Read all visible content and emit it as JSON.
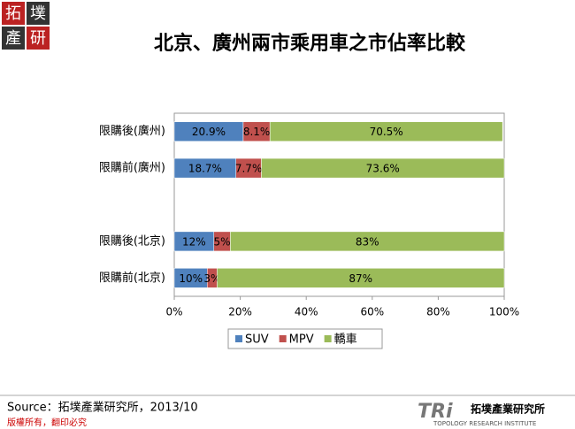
{
  "logo": {
    "chars": [
      "拓",
      "墣",
      "產",
      "研"
    ]
  },
  "chart_data": {
    "type": "stacked-barh",
    "title": "北京、廣州兩市乘用車之市佔率比較",
    "categories": [
      "限購後(廣州)",
      "限購前(廣州)",
      null,
      "限購後(北京)",
      "限購前(北京)"
    ],
    "series": [
      {
        "name": "SUV",
        "color": "#4f81bd",
        "values": [
          20.9,
          18.7,
          null,
          12,
          10
        ],
        "value_labels": [
          "20.9%",
          "18.7%",
          null,
          "12%",
          "10%"
        ]
      },
      {
        "name": "MPV",
        "color": "#c0504d",
        "values": [
          8.1,
          7.7,
          null,
          5,
          3
        ],
        "value_labels": [
          "8.1%",
          "7.7%",
          null,
          "5%",
          "3%"
        ]
      },
      {
        "name": "轎車",
        "color": "#9bbb59",
        "values": [
          70.5,
          73.6,
          null,
          83,
          87
        ],
        "value_labels": [
          "70.5%",
          "73.6%",
          null,
          "83%",
          "87%"
        ]
      }
    ],
    "xlim": [
      0,
      100
    ],
    "xticks": [
      {
        "value": 0,
        "label": "0%"
      },
      {
        "value": 20,
        "label": "20%"
      },
      {
        "value": 40,
        "label": "40%"
      },
      {
        "value": 60,
        "label": "60%"
      },
      {
        "value": 80,
        "label": "80%"
      },
      {
        "value": 100,
        "label": "100%"
      }
    ],
    "legend": "bottom"
  },
  "footer": {
    "source": "Source：拓墣產業研究所，2013/10",
    "copyright": "版權所有，翻印必究",
    "brand_mark": "TRi",
    "brand_name": "拓墣產業研究所",
    "brand_en": "TOPOLOGY RESEARCH INSTITUTE"
  }
}
